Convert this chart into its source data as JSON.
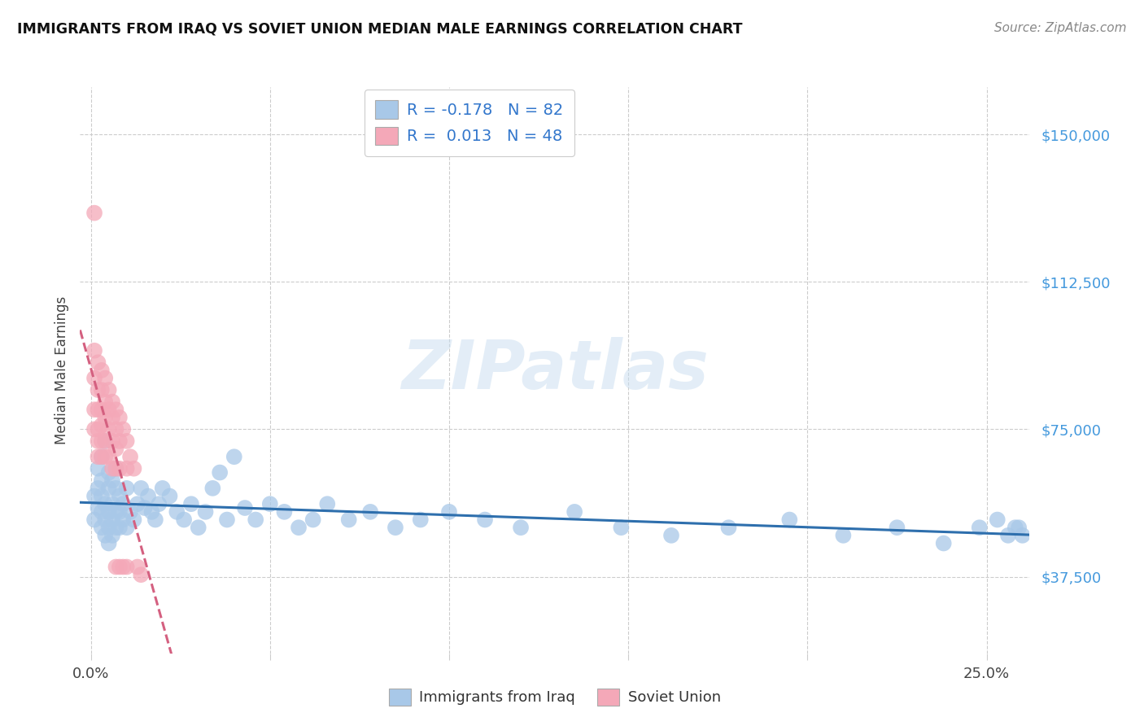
{
  "title": "IMMIGRANTS FROM IRAQ VS SOVIET UNION MEDIAN MALE EARNINGS CORRELATION CHART",
  "source": "Source: ZipAtlas.com",
  "ylabel": "Median Male Earnings",
  "ytick_labels": [
    "$37,500",
    "$75,000",
    "$112,500",
    "$150,000"
  ],
  "ytick_values": [
    37500,
    75000,
    112500,
    150000
  ],
  "ymin": 18000,
  "ymax": 162000,
  "xmin": -0.003,
  "xmax": 0.262,
  "watermark": "ZIPatlas",
  "iraq_color": "#a8c8e8",
  "soviet_color": "#f4a8b8",
  "iraq_line_color": "#2e6fad",
  "soviet_line_color": "#d46080",
  "iraq_R": -0.178,
  "iraq_N": 82,
  "soviet_R": 0.013,
  "soviet_N": 48,
  "legend_iraq_label_r": "R = -0.178",
  "legend_iraq_label_n": "N = 82",
  "legend_soviet_label_r": "R =  0.013",
  "legend_soviet_label_n": "N = 48",
  "bottom_legend_iraq": "Immigrants from Iraq",
  "bottom_legend_soviet": "Soviet Union",
  "iraq_x": [
    0.001,
    0.001,
    0.002,
    0.002,
    0.002,
    0.003,
    0.003,
    0.003,
    0.003,
    0.003,
    0.004,
    0.004,
    0.004,
    0.004,
    0.005,
    0.005,
    0.005,
    0.005,
    0.005,
    0.006,
    0.006,
    0.006,
    0.006,
    0.007,
    0.007,
    0.007,
    0.007,
    0.008,
    0.008,
    0.008,
    0.009,
    0.009,
    0.01,
    0.01,
    0.011,
    0.012,
    0.013,
    0.014,
    0.015,
    0.016,
    0.017,
    0.018,
    0.019,
    0.02,
    0.022,
    0.024,
    0.026,
    0.028,
    0.03,
    0.032,
    0.034,
    0.036,
    0.038,
    0.04,
    0.043,
    0.046,
    0.05,
    0.054,
    0.058,
    0.062,
    0.066,
    0.072,
    0.078,
    0.085,
    0.092,
    0.1,
    0.11,
    0.12,
    0.135,
    0.148,
    0.162,
    0.178,
    0.195,
    0.21,
    0.225,
    0.238,
    0.248,
    0.253,
    0.256,
    0.258,
    0.259,
    0.26
  ],
  "iraq_y": [
    52000,
    58000,
    55000,
    60000,
    65000,
    50000,
    54000,
    58000,
    62000,
    68000,
    48000,
    52000,
    56000,
    72000,
    46000,
    50000,
    54000,
    60000,
    64000,
    48000,
    52000,
    56000,
    62000,
    50000,
    54000,
    60000,
    65000,
    50000,
    54000,
    58000,
    52000,
    56000,
    50000,
    60000,
    54000,
    52000,
    56000,
    60000,
    55000,
    58000,
    54000,
    52000,
    56000,
    60000,
    58000,
    54000,
    52000,
    56000,
    50000,
    54000,
    60000,
    64000,
    52000,
    68000,
    55000,
    52000,
    56000,
    54000,
    50000,
    52000,
    56000,
    52000,
    54000,
    50000,
    52000,
    54000,
    52000,
    50000,
    54000,
    50000,
    48000,
    50000,
    52000,
    48000,
    50000,
    46000,
    50000,
    52000,
    48000,
    50000,
    50000,
    48000
  ],
  "soviet_x": [
    0.001,
    0.001,
    0.001,
    0.001,
    0.001,
    0.002,
    0.002,
    0.002,
    0.002,
    0.002,
    0.002,
    0.003,
    0.003,
    0.003,
    0.003,
    0.003,
    0.003,
    0.004,
    0.004,
    0.004,
    0.004,
    0.004,
    0.005,
    0.005,
    0.005,
    0.005,
    0.006,
    0.006,
    0.006,
    0.006,
    0.007,
    0.007,
    0.007,
    0.007,
    0.007,
    0.008,
    0.008,
    0.008,
    0.008,
    0.009,
    0.009,
    0.01,
    0.01,
    0.01,
    0.011,
    0.012,
    0.013,
    0.014
  ],
  "soviet_y": [
    130000,
    95000,
    88000,
    80000,
    75000,
    92000,
    85000,
    80000,
    75000,
    72000,
    68000,
    90000,
    85000,
    80000,
    76000,
    72000,
    68000,
    88000,
    82000,
    78000,
    72000,
    68000,
    85000,
    80000,
    75000,
    68000,
    82000,
    78000,
    72000,
    65000,
    80000,
    75000,
    70000,
    65000,
    40000,
    78000,
    72000,
    65000,
    40000,
    75000,
    40000,
    72000,
    65000,
    40000,
    68000,
    65000,
    40000,
    38000
  ]
}
